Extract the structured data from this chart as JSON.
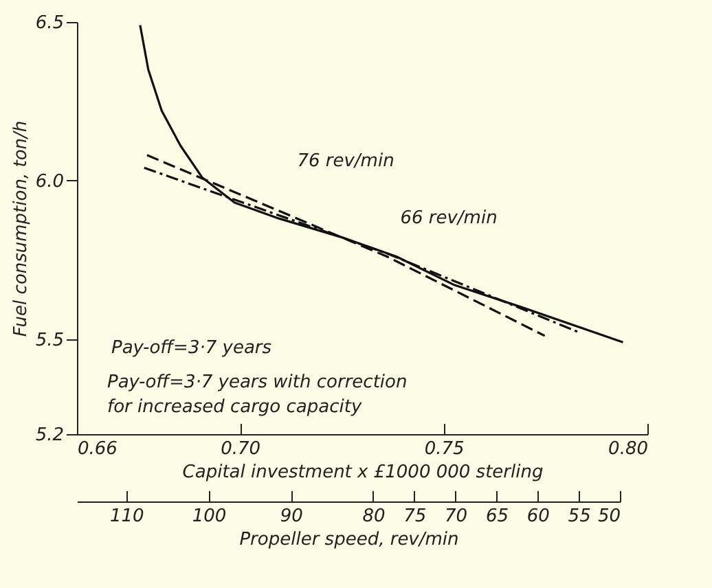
{
  "chart_data": {
    "type": "line",
    "xlabel": "Capital investment x £1000 000 sterling",
    "ylabel": "Fuel consumption, ton/h",
    "x2label": "Propeller speed, rev/min",
    "xlim": [
      0.66,
      0.8
    ],
    "xticks": [
      0.66,
      {
        "value": 0.7,
        "label": "0.70"
      },
      0.75,
      {
        "value": 0.8,
        "label": "0.80"
      }
    ],
    "ylim": [
      5.2,
      6.5
    ],
    "yticks": [
      5.2,
      5.5,
      {
        "value": 6.0,
        "label": "6.0"
      },
      6.5
    ],
    "x2lim": [
      116,
      50
    ],
    "x2ticks": [
      110,
      100,
      90,
      80,
      75,
      70,
      65,
      60,
      55,
      50
    ],
    "series": [
      {
        "color": "#111111",
        "line_style": "solid",
        "x": [
          0.6755,
          0.6775,
          0.6808,
          0.6854,
          0.6907,
          0.6987,
          0.7096,
          0.7252,
          0.7384,
          0.7527,
          0.7692,
          0.794
        ],
        "values": [
          6.49,
          6.35,
          6.22,
          6.11,
          6.01,
          5.93,
          5.88,
          5.82,
          5.76,
          5.67,
          5.6,
          5.49
        ]
      },
      {
        "color": "#111111",
        "line_style": "dashed",
        "x": [
          0.6772,
          0.703,
          0.7361,
          0.7748
        ],
        "values": [
          6.08,
          5.94,
          5.76,
          5.51
        ]
      },
      {
        "color": "#111111",
        "line_style": "dotted",
        "x": [
          0.6765,
          0.703,
          0.7361,
          0.7834
        ],
        "values": [
          6.04,
          5.92,
          5.77,
          5.52
        ]
      }
    ],
    "annotations": [
      {
        "text": "76 rev/min",
        "x": 0.71,
        "y": 5.89
      },
      {
        "text": "66 rev/min",
        "x": 0.738,
        "y": 5.77
      },
      "Pay-off=3·7 years",
      "Pay-off=3·7 years with correction\nfor increased cargo capacity"
    ]
  }
}
